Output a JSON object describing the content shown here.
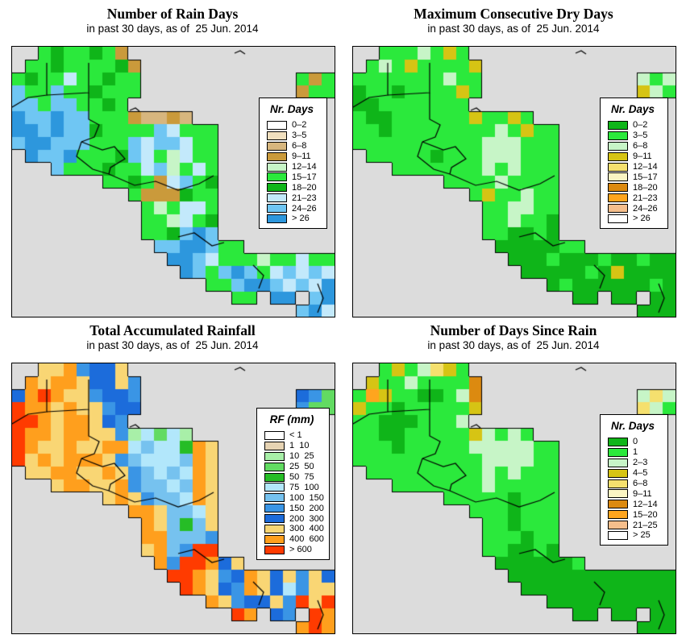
{
  "page": {
    "background": "#FFFFFF",
    "ocean_color": "#DCDCDC",
    "border_color": "#000000"
  },
  "palette": {
    "w": "#FFFFFF",
    "t": "#F0DFBE",
    "T": "#D7B67E",
    "g": "#CA9A3B",
    "p": "#C7F5C7",
    "G": "#2BE93C",
    "D": "#0FB519",
    "b": "#C3E9FB",
    "B": "#6FC6F3",
    "U": "#2D97DD",
    "y": "#D6C414",
    "Y": "#F5E06E",
    "L": "#FAF5C3",
    "o": "#DC8A10",
    "O": "#FFA51E",
    "s": "#F5BE8C",
    "a": "#A8EFA8",
    "m": "#62DB62",
    "e": "#26BD26",
    "c": "#B2E7FB",
    "l": "#76C2EF",
    "u": "#3A95E5",
    "d": "#1C6CDB",
    "f": "#F9D674",
    "n": "#FF9F1D",
    "r": "#FF3B00"
  },
  "panels": [
    {
      "id": "rain-days",
      "title": "Number of Rain Days",
      "subtitle": "in past 30 days, as of  25 Jun. 2014",
      "legend": {
        "title": "Nr. Days",
        "items": [
          {
            "label": "0–2",
            "color": "#FFFFFF"
          },
          {
            "label": "3–5",
            "color": "#F0DFBE"
          },
          {
            "label": "6–8",
            "color": "#D7B67E"
          },
          {
            "label": "9–11",
            "color": "#CA9A3B"
          },
          {
            "label": "12–14",
            "color": "#C7F5C7"
          },
          {
            "label": "15–17",
            "color": "#2BE93C"
          },
          {
            "label": "18–20",
            "color": "#0FB519"
          },
          {
            "label": "21–23",
            "color": "#C3E9FB"
          },
          {
            "label": "24–26",
            "color": "#6FC6F3"
          },
          {
            "label": "> 26",
            "color": "#2D97DD"
          }
        ]
      },
      "grid": [
        "..GDGGDGg................",
        ".GGDGGGGDg...............",
        "GDGGbGGDGG............GgG",
        "BGGBGGDGGG............gGG",
        "BBGBBGGDG................",
        "UBBUBBGGGgTTgT...........",
        "UUBUBBDGGGGBbGGG.........",
        "BUUBBBGGGBbBBbGG.........",
        ".UBBUGGGDBbGpbGG.........",
        "...BGGGDGGbBpGbG.........",
        ".......GGDGgbBGD.........",
        ".........GgggDGG.........",
        "..........GpGbbG.........",
        "..........GGpbGD.........",
        "..........GGDBUB.........",
        "...........BBUUBGG.......",
        "............UUBbGGGpGGbGG",
        ".............UBGBUBGbBbBb",
        "...............GGBUUBbBbU",
        ".................GG.UU.BU",
        "......................BUb"
      ]
    },
    {
      "id": "max-consecutive-dry-days",
      "title": "Maximum Consecutive Dry Days",
      "subtitle": "in past 30 days, as of  25 Jun. 2014",
      "legend": {
        "title": "Nr. Days",
        "items": [
          {
            "label": "0–2",
            "color": "#0FB519"
          },
          {
            "label": "3–5",
            "color": "#2BE93C"
          },
          {
            "label": "6–8",
            "color": "#C7F5C7"
          },
          {
            "label": "9–11",
            "color": "#D6C414"
          },
          {
            "label": "12–14",
            "color": "#F5E06E"
          },
          {
            "label": "15–17",
            "color": "#FAF5C3"
          },
          {
            "label": "18–20",
            "color": "#DC8A10"
          },
          {
            "label": "21–23",
            "color": "#FFA51E"
          },
          {
            "label": "24–26",
            "color": "#F5BE8C"
          },
          {
            "label": "> 26",
            "color": "#FFFFFF"
          }
        ]
      },
      "grid": [
        "..GGGpGyG................",
        ".GpGyGGGGy...............",
        "GGGGGGGpGG............pGp",
        "DGGDGGGGyG............ypG",
        "DDGGGGGGG................",
        "GDDGGGGGGyGGyG...........",
        "GGDGGGGGGGGpGyGG.........",
        "GGGGGGGGGGpppGGG.........",
        ".GGGGGDGGGpppGGG.........",
        "...GGGGGGGpGpGGG.........",
        ".......GGGGpGGGG.........",
        ".........GyGGpGG.........",
        "..........GGppGG.........",
        "..........GGpGGD.........",
        "..........GGDDGD.........",
        "...........DDDDDGG.......",
        "............DDDGDDDGDDGDD",
        ".............DDDDDGDyDDDD",
        "...............DGDDDDDDGD",
        ".................DD.DD.DD",
        "......................DDD"
      ]
    },
    {
      "id": "total-accumulated-rainfall",
      "title": "Total Accumulated Rainfall",
      "subtitle": "in past 30 days, as of  25 Jun. 2014",
      "legend": {
        "title": "RF (mm)",
        "items": [
          {
            "label": "< 1",
            "color": "#FFFFFF"
          },
          {
            "label": "1  10",
            "color": "#E6D3B3"
          },
          {
            "label": "10  25",
            "color": "#A8EFA8"
          },
          {
            "label": "25  50",
            "color": "#62DB62"
          },
          {
            "label": "50  75",
            "color": "#26BD26"
          },
          {
            "label": "75  100",
            "color": "#B2E7FB"
          },
          {
            "label": "100  150",
            "color": "#76C2EF"
          },
          {
            "label": "150  200",
            "color": "#3A95E5"
          },
          {
            "label": "200  300",
            "color": "#1C6CDB"
          },
          {
            "label": "300  400",
            "color": "#F9D674"
          },
          {
            "label": "400  600",
            "color": "#FF9F1D"
          },
          {
            "label": "> 600",
            "color": "#FF3B00"
          }
        ]
      },
      "grid": [
        "..ffnuddf................",
        ".nfnnfddfu...............",
        "dnrnffuddu............dum",
        "rnnfnffudd............umm",
        "rrnfnnfdu................",
        "rnnfnnffuacmca...........",
        "rnffnffnnclccenf.........",
        "rfnfnnnfulccclnf.........",
        ".ffnnffnfulclcnf.........",
        "...fnnffnullclnf.........",
        ".......fnfullcnf.........",
        ".........nnfllcf.........",
        "..........nflelf.........",
        "..........nnlllu.........",
        "..........fnlurr.........",
        "...........nurrndf.......",
        "............rrnfudnfdfufd",
        ".............rnfdunfdcuff",
        "...............nfuddfurfr",
        ".................rn.du.rn",
        "......................nrn"
      ]
    },
    {
      "id": "days-since-rain",
      "title": "Number of Days Since Rain",
      "subtitle": "in past 30 days, as of  25 Jun. 2014",
      "legend": {
        "title": "Nr. Days",
        "items": [
          {
            "label": "0",
            "color": "#0FB519"
          },
          {
            "label": "1",
            "color": "#2BE93C"
          },
          {
            "label": "2–3",
            "color": "#C7F5C7"
          },
          {
            "label": "4–5",
            "color": "#D6C414"
          },
          {
            "label": "6–8",
            "color": "#F5E06E"
          },
          {
            "label": "9–11",
            "color": "#FAF5C3"
          },
          {
            "label": "12–14",
            "color": "#DC8A10"
          },
          {
            "label": "15–20",
            "color": "#FFA51E"
          },
          {
            "label": "21–25",
            "color": "#F5BE8C"
          },
          {
            "label": "> 25",
            "color": "#FFFFFF"
          }
        ]
      },
      "grid": [
        "..GyGpYyG................",
        ".yGGpGGGGo...............",
        "GOyGGDDGpo............pYp",
        "yGGDGGGGGy............YpG",
        "GGDDDGGGp................",
        "GGDDGGGGGypGpG...........",
        "GGGDGGGGGpppppGG.........",
        "GGGGGGGGGGppppGG.........",
        ".GGGGGGGGGpGpGGG.........",
        "...GGGGGGGpGGGGG.........",
        ".......GGGGGDGGG.........",
        ".........GGGDGGG.........",
        "..........GGDGGG.........",
        "..........GGGDGG.........",
        "..........GGDDGD.........",
        "...........DDDDDDG.......",
        "............DDDDDDDDDDDDD",
        ".............DDDDDDDDDDDD",
        "...............DDDDDDDDDD",
        ".................DD.DD.DD",
        "......................DDD"
      ]
    }
  ]
}
